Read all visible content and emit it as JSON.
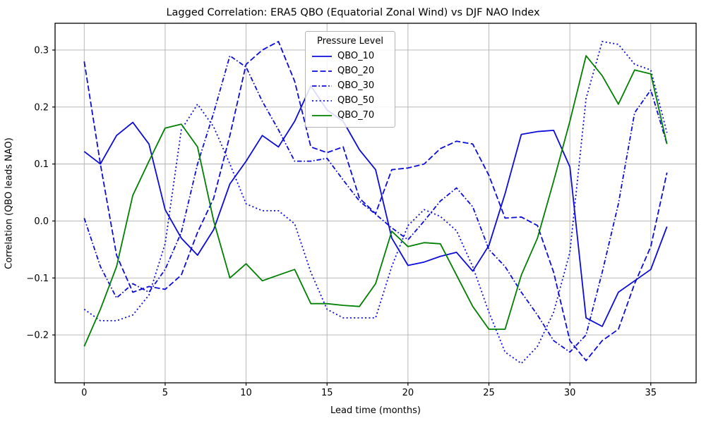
{
  "figure": {
    "title": "Lagged Correlation: ERA5 QBO (Equatorial Zonal Wind) vs DJF NAO Index",
    "xlabel": "Lead time (months)",
    "ylabel": "Correlation (QBO leads NAO)"
  },
  "legend": {
    "title": "Pressure Level",
    "entries": [
      "QBO_10",
      "QBO_20",
      "QBO_30",
      "QBO_50",
      "QBO_70"
    ]
  },
  "colors": {
    "blue": "#0b0bdb",
    "green": "#008000",
    "grid": "#b0b0b0",
    "spine": "#000000"
  },
  "chart_data": {
    "type": "line",
    "title": "Lagged Correlation: ERA5 QBO (Equatorial Zonal Wind) vs DJF NAO Index",
    "xlabel": "Lead time (months)",
    "ylabel": "Correlation (QBO leads NAO)",
    "grid": true,
    "legend_position": "upper center",
    "xlim": [
      -1.8,
      37.8
    ],
    "ylim": [
      -0.284,
      0.347
    ],
    "xticks": [
      0,
      5,
      10,
      15,
      20,
      25,
      30,
      35
    ],
    "xtick_labels": [
      "0",
      "5",
      "10",
      "15",
      "20",
      "25",
      "30",
      "35"
    ],
    "yticks": [
      -0.2,
      -0.1,
      0.0,
      0.1,
      0.2,
      0.3
    ],
    "ytick_labels": [
      "−0.2",
      "−0.1",
      "0.0",
      "0.1",
      "0.2",
      "0.3"
    ],
    "x": [
      0,
      1,
      2,
      3,
      4,
      5,
      6,
      7,
      8,
      9,
      10,
      11,
      12,
      13,
      14,
      15,
      16,
      17,
      18,
      19,
      20,
      21,
      22,
      23,
      24,
      25,
      26,
      27,
      28,
      29,
      30,
      31,
      32,
      33,
      34,
      35,
      36
    ],
    "series": [
      {
        "name": "QBO_10",
        "color": "#0b0bdb",
        "linestyle": "solid",
        "values": [
          0.122,
          0.1,
          0.15,
          0.173,
          0.135,
          0.02,
          -0.03,
          -0.06,
          -0.015,
          0.065,
          0.105,
          0.15,
          0.13,
          0.175,
          0.237,
          0.195,
          0.175,
          0.125,
          0.09,
          -0.03,
          -0.078,
          -0.072,
          -0.062,
          -0.055,
          -0.088,
          -0.043,
          0.048,
          0.152,
          0.157,
          0.159,
          0.095,
          -0.17,
          -0.185,
          -0.125,
          -0.105,
          -0.085,
          -0.01
        ]
      },
      {
        "name": "QBO_20",
        "color": "#0b0bdb",
        "linestyle": "dashed",
        "values": [
          0.28,
          0.1,
          -0.06,
          -0.125,
          -0.115,
          -0.12,
          -0.095,
          -0.02,
          0.04,
          0.15,
          0.275,
          0.3,
          0.315,
          0.245,
          0.13,
          0.12,
          0.13,
          0.04,
          0.013,
          0.09,
          0.093,
          0.1,
          0.127,
          0.14,
          0.135,
          0.08,
          0.005,
          0.007,
          -0.008,
          -0.09,
          -0.21,
          -0.245,
          -0.21,
          -0.19,
          -0.11,
          -0.045,
          0.085
        ]
      },
      {
        "name": "QBO_30",
        "color": "#0b0bdb",
        "linestyle": "dashdot",
        "values": [
          0.005,
          -0.08,
          -0.135,
          -0.11,
          -0.125,
          -0.085,
          -0.02,
          0.1,
          0.19,
          0.29,
          0.27,
          0.21,
          0.16,
          0.105,
          0.105,
          0.11,
          0.072,
          0.035,
          0.012,
          -0.012,
          -0.033,
          0.0,
          0.035,
          0.058,
          0.025,
          -0.05,
          -0.08,
          -0.125,
          -0.165,
          -0.21,
          -0.23,
          -0.2,
          -0.09,
          0.03,
          0.19,
          0.23,
          0.135
        ]
      },
      {
        "name": "QBO_50",
        "color": "#0b0bdb",
        "linestyle": "dotted",
        "values": [
          -0.155,
          -0.175,
          -0.175,
          -0.165,
          -0.13,
          -0.04,
          0.16,
          0.205,
          0.165,
          0.1,
          0.03,
          0.018,
          0.018,
          -0.005,
          -0.09,
          -0.155,
          -0.17,
          -0.17,
          -0.17,
          -0.08,
          -0.008,
          0.02,
          0.008,
          -0.017,
          -0.08,
          -0.16,
          -0.23,
          -0.25,
          -0.22,
          -0.16,
          -0.055,
          0.215,
          0.315,
          0.31,
          0.275,
          0.265,
          0.155
        ]
      },
      {
        "name": "QBO_70",
        "color": "#008000",
        "linestyle": "solid",
        "values": [
          -0.22,
          -0.155,
          -0.08,
          0.045,
          0.105,
          0.163,
          0.17,
          0.13,
          0.0,
          -0.1,
          -0.075,
          -0.105,
          -0.095,
          -0.085,
          -0.145,
          -0.145,
          -0.148,
          -0.15,
          -0.11,
          -0.018,
          -0.045,
          -0.038,
          -0.04,
          -0.095,
          -0.15,
          -0.19,
          -0.19,
          -0.095,
          -0.03,
          0.07,
          0.175,
          0.29,
          0.255,
          0.205,
          0.265,
          0.258,
          0.135
        ]
      }
    ]
  }
}
